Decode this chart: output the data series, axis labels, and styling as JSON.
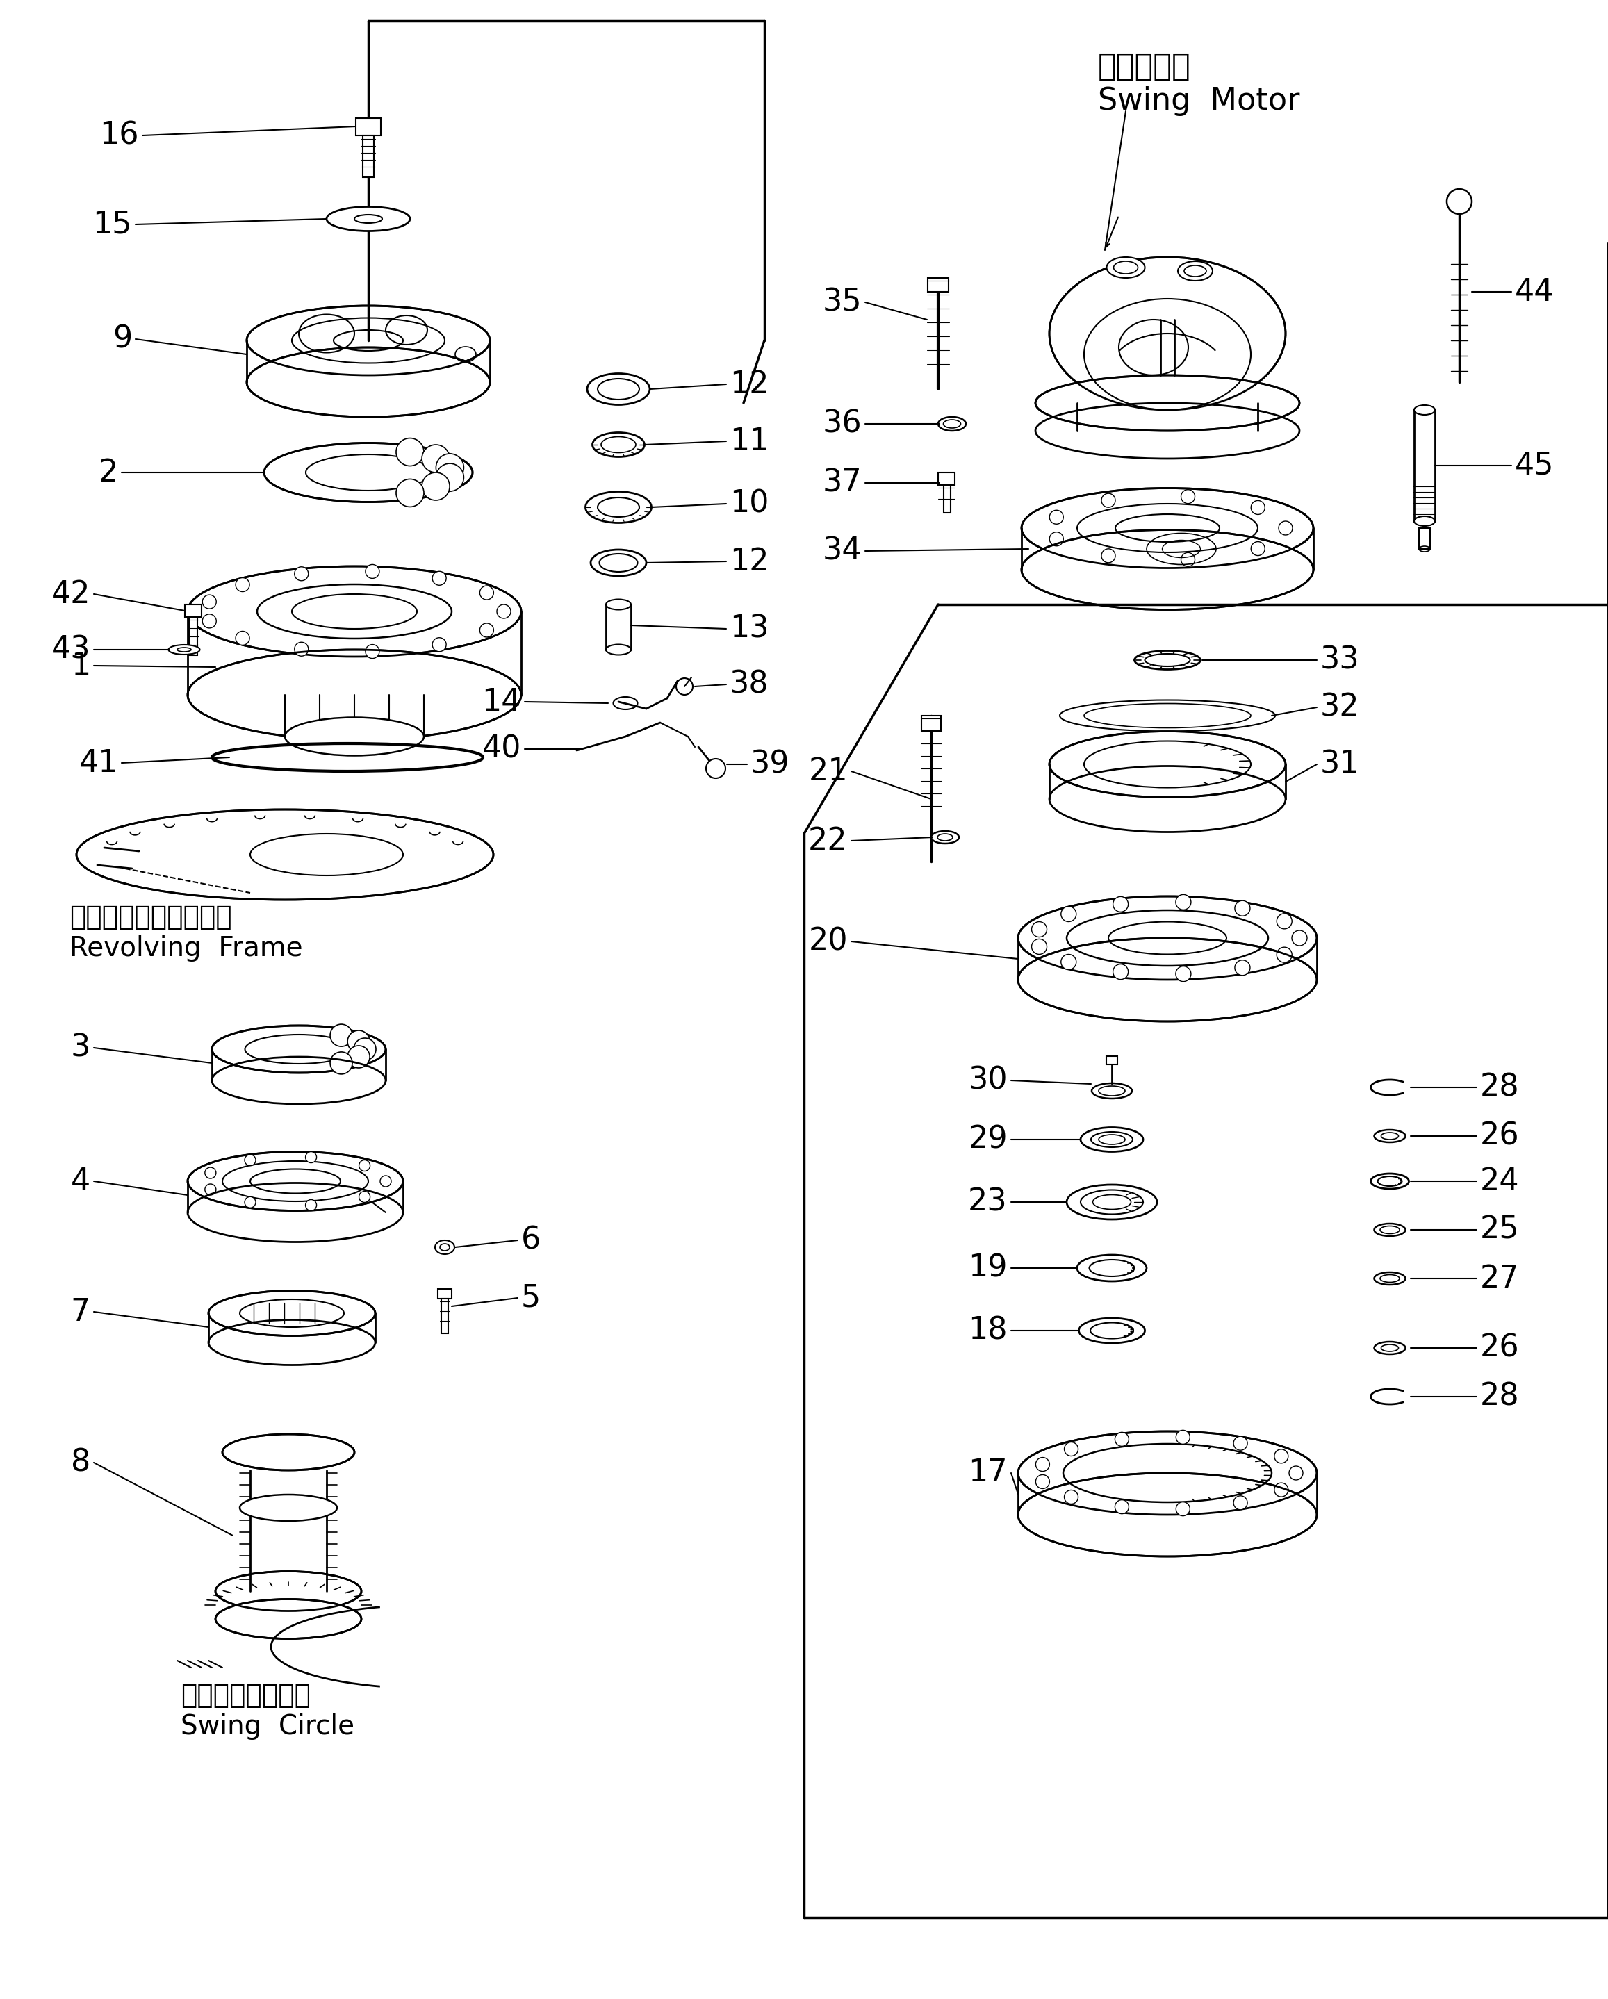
{
  "bg_color": "#ffffff",
  "line_color": "#000000",
  "title_jp": "旋回モータ",
  "title_en": "Swing  Motor",
  "label_revolving_jp": "レボルビングフレーム",
  "label_revolving_en": "Revolving  Frame",
  "label_swing_jp": "スイングサークル",
  "label_swing_en": "Swing  Circle"
}
